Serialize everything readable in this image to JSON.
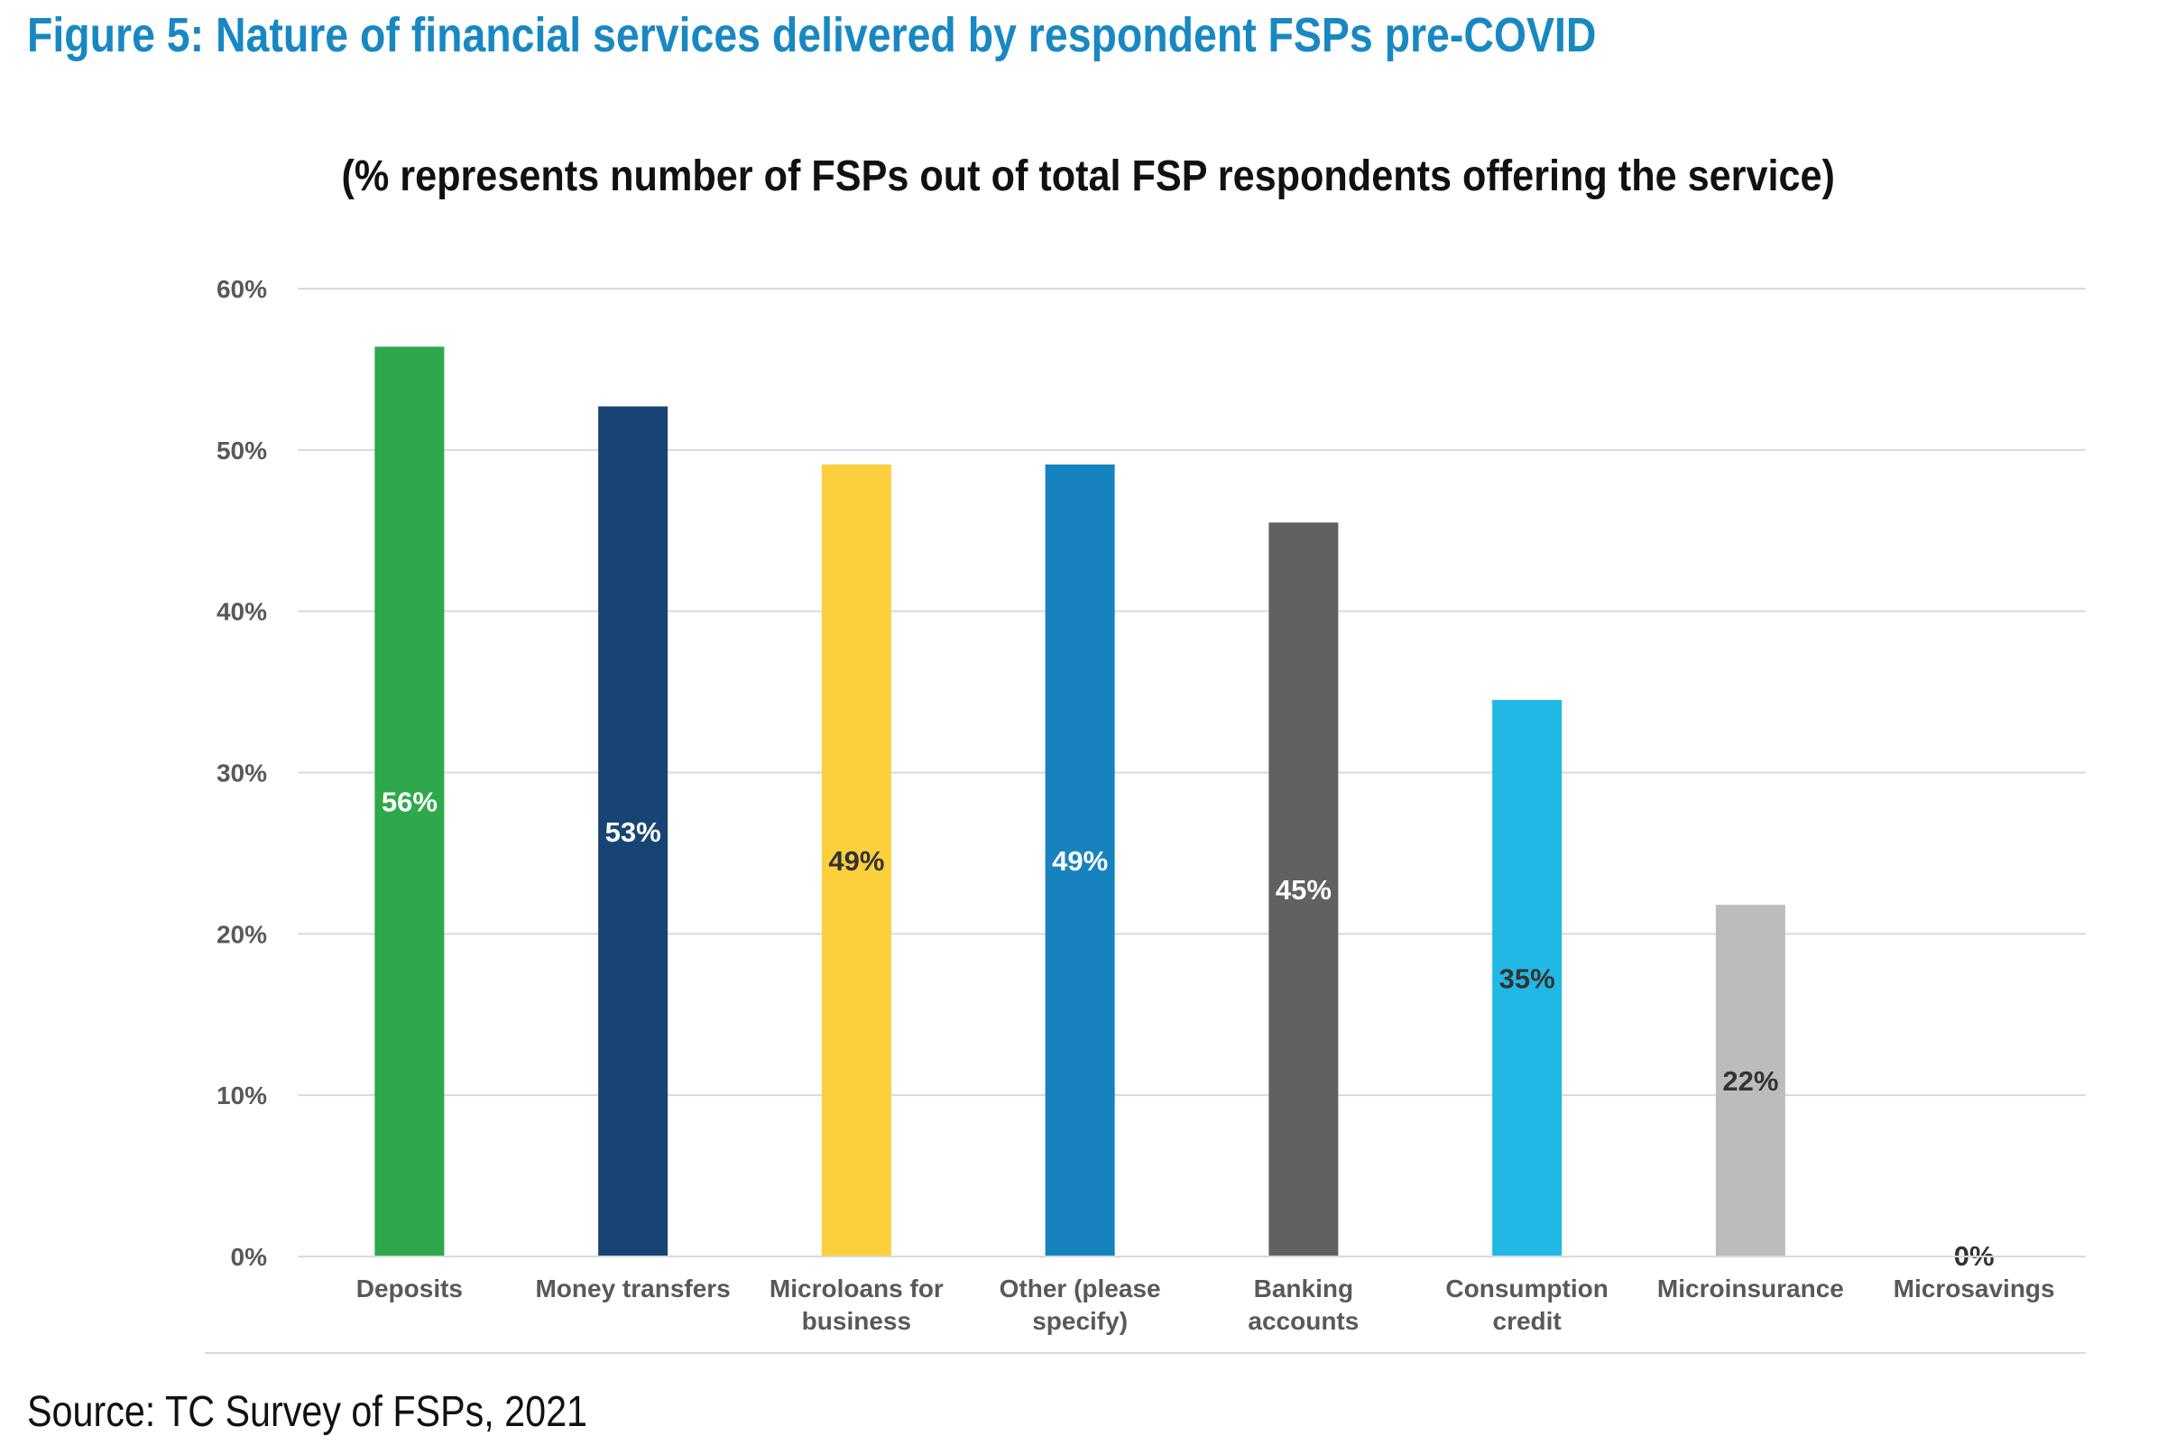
{
  "figure_title": "Figure 5: Nature of financial services delivered by respondent FSPs pre-COVID",
  "source": "Source: TC Survey of FSPs, 2021",
  "colors": {
    "title": "#1888c2",
    "gridline": "#d9d9d9",
    "axis_text": "#595959"
  },
  "chart_data": {
    "type": "bar",
    "title": "(% represents number of FSPs out of total FSP respondents offering the service)",
    "xlabel": "",
    "ylabel": "",
    "ylim": [
      0,
      60
    ],
    "yticks": [
      "0%",
      "10%",
      "20%",
      "30%",
      "40%",
      "50%",
      "60%"
    ],
    "grid": true,
    "legend": "none",
    "categories": [
      [
        "Deposits"
      ],
      [
        "Money transfers"
      ],
      [
        "Microloans for",
        "business"
      ],
      [
        "Other (please",
        "specify)"
      ],
      [
        "Banking",
        "accounts"
      ],
      [
        "Consumption",
        "credit"
      ],
      [
        "Microinsurance"
      ],
      [
        "Microsavings"
      ]
    ],
    "values": [
      56.4,
      52.7,
      49.1,
      49.1,
      45.5,
      34.5,
      21.8,
      0
    ],
    "data_labels": [
      "56%",
      "53%",
      "49%",
      "49%",
      "45%",
      "35%",
      "22%",
      "0%"
    ],
    "bar_colors": [
      "#2ea84a",
      "#174475",
      "#fcd03d",
      "#1683be",
      "#616161",
      "#21b8e6",
      "#bcbcbc",
      "#bcbcbc"
    ],
    "label_colors": [
      "#ffffff",
      "#ffffff",
      "#333333",
      "#ffffff",
      "#ffffff",
      "#333333",
      "#333333",
      "#333333"
    ]
  }
}
